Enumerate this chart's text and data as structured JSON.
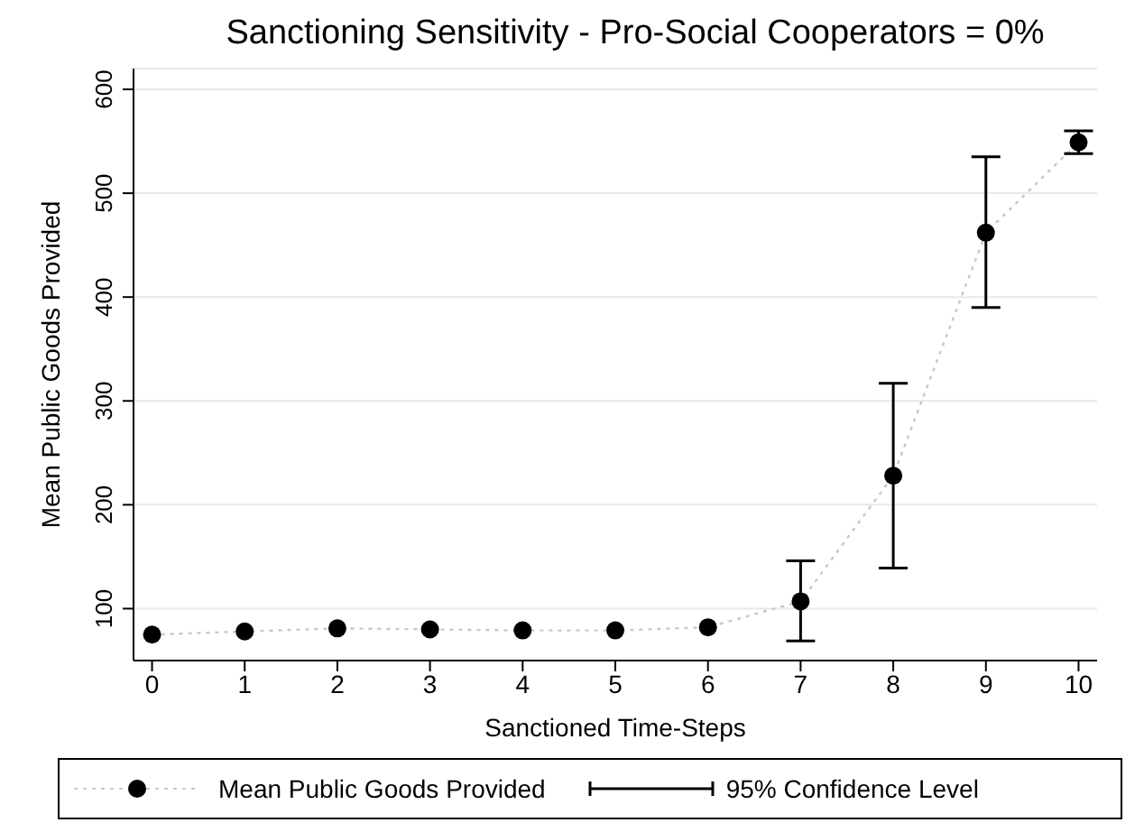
{
  "chart_data": {
    "type": "scatter",
    "title": "Sanctioning Sensitivity - Pro-Social Cooperators = 0%",
    "xlabel": "Sanctioned Time-Steps",
    "ylabel": "Mean Public Goods Provided",
    "x": [
      0,
      1,
      2,
      3,
      4,
      5,
      6,
      7,
      8,
      9,
      10
    ],
    "series": [
      {
        "type": "line",
        "color": "#c8c8c8",
        "line_style": "dotted",
        "marker": "none",
        "values": [
          75,
          78,
          81,
          80,
          79,
          79,
          82,
          107,
          228,
          462,
          549
        ]
      },
      {
        "name": "Mean Public Goods Provided",
        "color": "#000000",
        "marker": "circle",
        "values": [
          75,
          78,
          81,
          80,
          79,
          79,
          82,
          107,
          228,
          462,
          549
        ],
        "errors": [
          null,
          null,
          null,
          null,
          null,
          null,
          null,
          [
            69,
            146
          ],
          [
            139,
            317
          ],
          [
            390,
            535
          ],
          [
            538,
            560
          ]
        ]
      }
    ],
    "annotations": [
      "95% Confidence Level"
    ],
    "xlim": [
      -0.2,
      10.2
    ],
    "xticks": [
      0,
      1,
      2,
      3,
      4,
      5,
      6,
      7,
      8,
      9,
      10
    ],
    "ylim": [
      50,
      620
    ],
    "yticks": [
      100,
      200,
      300,
      400,
      500,
      600
    ],
    "grid": "y",
    "legend": "bottom"
  }
}
